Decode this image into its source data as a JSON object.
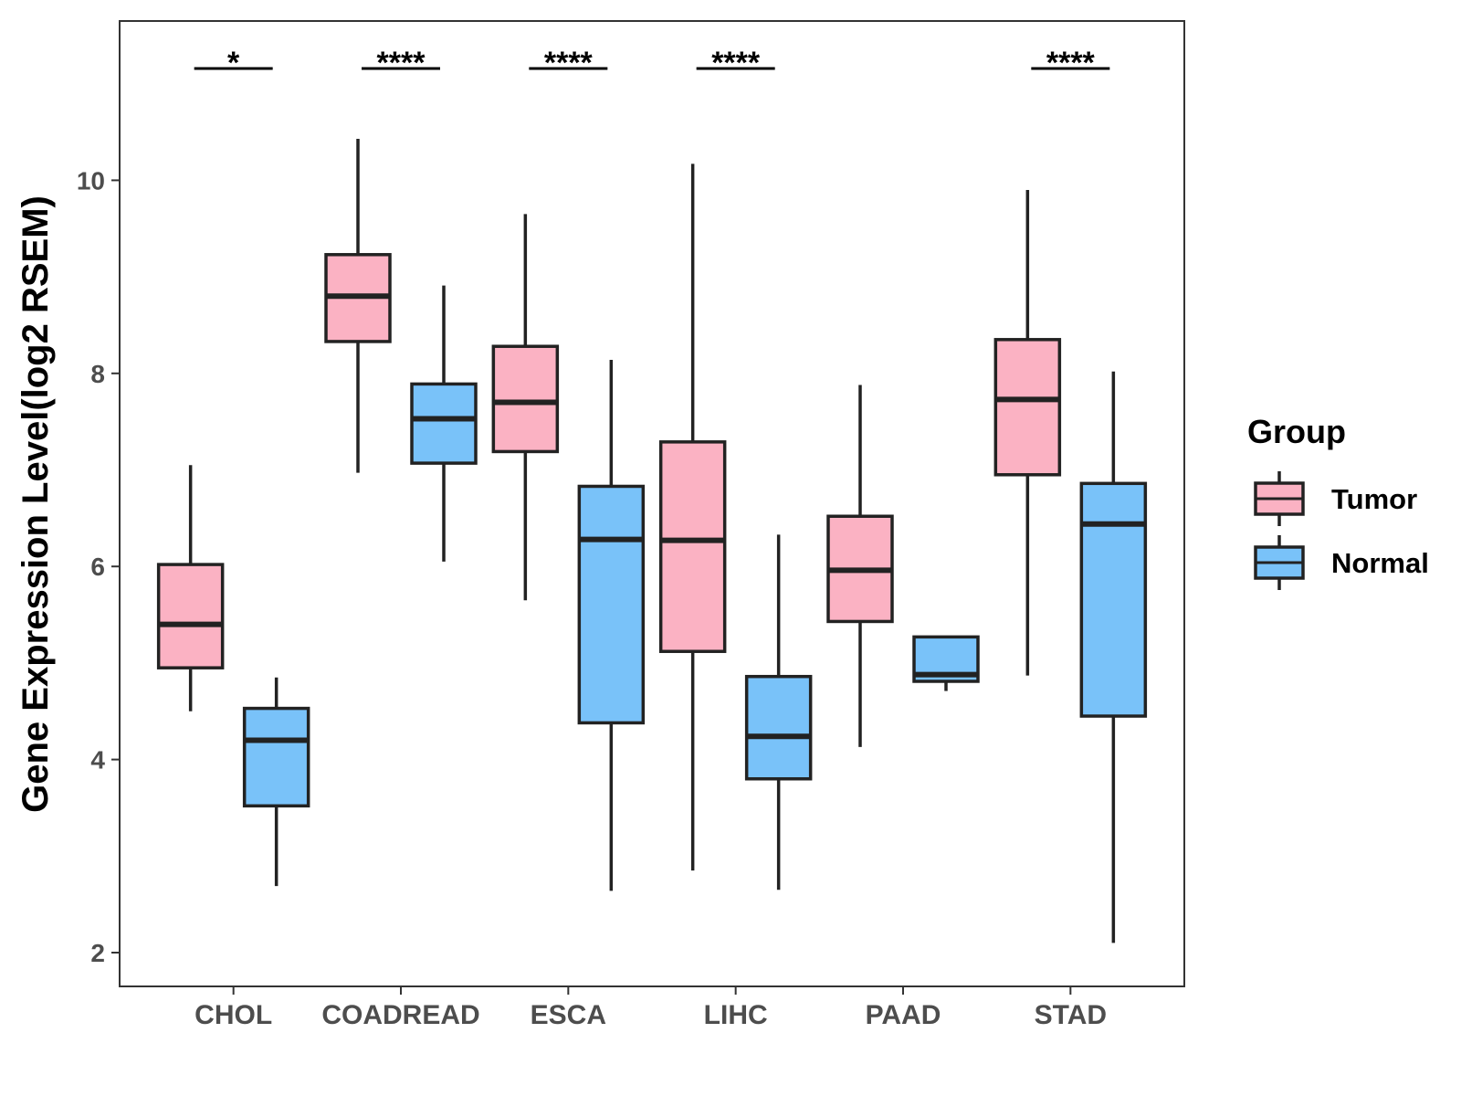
{
  "chart_data": {
    "type": "boxplot",
    "title": "",
    "xlabel": "",
    "ylabel": "Gene Expression Level(log2 RSEM)",
    "ylim": [
      1.65,
      11.65
    ],
    "yticks": [
      2,
      4,
      6,
      8,
      10
    ],
    "ytick_labels": [
      "2",
      "4",
      "6",
      "8",
      "10"
    ],
    "categories": [
      "CHOL",
      "COADREAD",
      "ESCA",
      "LIHC",
      "PAAD",
      "STAD"
    ],
    "legend": {
      "title": "Group",
      "position": "right",
      "entries": [
        "Tumor",
        "Normal"
      ]
    },
    "series": [
      {
        "name": "Tumor",
        "color": "#FBB2C3",
        "boxes": [
          {
            "min": 4.5,
            "q1": 4.95,
            "median": 5.4,
            "q3": 6.02,
            "max": 7.05
          },
          {
            "min": 6.97,
            "q1": 8.33,
            "median": 8.8,
            "q3": 9.23,
            "max": 10.43
          },
          {
            "min": 5.65,
            "q1": 7.19,
            "median": 7.7,
            "q3": 8.28,
            "max": 9.65
          },
          {
            "min": 2.85,
            "q1": 5.12,
            "median": 6.27,
            "q3": 7.29,
            "max": 10.17
          },
          {
            "min": 4.13,
            "q1": 5.43,
            "median": 5.96,
            "q3": 6.52,
            "max": 7.88
          },
          {
            "min": 4.87,
            "q1": 6.95,
            "median": 7.73,
            "q3": 8.35,
            "max": 9.9
          }
        ]
      },
      {
        "name": "Normal",
        "color": "#79C2F9",
        "boxes": [
          {
            "min": 2.69,
            "q1": 3.52,
            "median": 4.2,
            "q3": 4.53,
            "max": 4.85
          },
          {
            "min": 6.05,
            "q1": 7.07,
            "median": 7.53,
            "q3": 7.89,
            "max": 8.91
          },
          {
            "min": 2.64,
            "q1": 4.38,
            "median": 6.28,
            "q3": 6.83,
            "max": 8.14
          },
          {
            "min": 2.65,
            "q1": 3.8,
            "median": 4.24,
            "q3": 4.86,
            "max": 6.33
          },
          {
            "min": 4.71,
            "q1": 4.81,
            "median": 4.88,
            "q3": 5.27,
            "max": 5.27
          },
          {
            "min": 2.1,
            "q1": 4.45,
            "median": 6.44,
            "q3": 6.86,
            "max": 8.02
          }
        ]
      }
    ],
    "significance": [
      {
        "category": "CHOL",
        "label": "*"
      },
      {
        "category": "COADREAD",
        "label": "****"
      },
      {
        "category": "ESCA",
        "label": "****"
      },
      {
        "category": "LIHC",
        "label": "****"
      },
      {
        "category": "STAD",
        "label": "****"
      }
    ]
  }
}
